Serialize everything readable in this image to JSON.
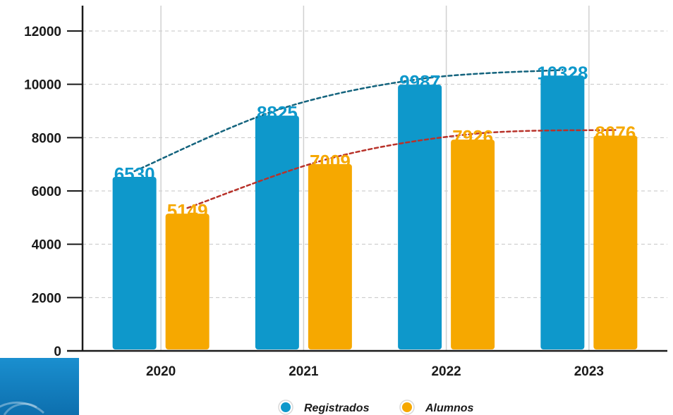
{
  "chart_data": {
    "type": "bar",
    "title": "",
    "xlabel": "",
    "ylabel": "",
    "categories": [
      "2020",
      "2021",
      "2022",
      "2023"
    ],
    "series": [
      {
        "name": "Registrados",
        "values": [
          6530,
          8825,
          9987,
          10328
        ],
        "labels": [
          "6530",
          "8825",
          "9987",
          "10328"
        ],
        "color": "#0e98cb",
        "trend_color": "#13637d"
      },
      {
        "name": "Alumnos",
        "values": [
          5149,
          7009,
          7926,
          8076
        ],
        "labels": [
          "5149",
          "7009",
          "7926",
          "8076"
        ],
        "color": "#f6a800",
        "trend_color": "#b8322a"
      }
    ],
    "ylim": [
      0,
      12000
    ],
    "yticks": [
      0,
      2000,
      4000,
      6000,
      8000,
      10000,
      12000
    ],
    "ytick_labels": [
      "0",
      "2000",
      "4000",
      "6000",
      "8000",
      "10000",
      "12000"
    ],
    "trend_lines": true,
    "grid": "dashed",
    "legend_position": "bottom-center",
    "decoration_color": "#0e86bf"
  }
}
